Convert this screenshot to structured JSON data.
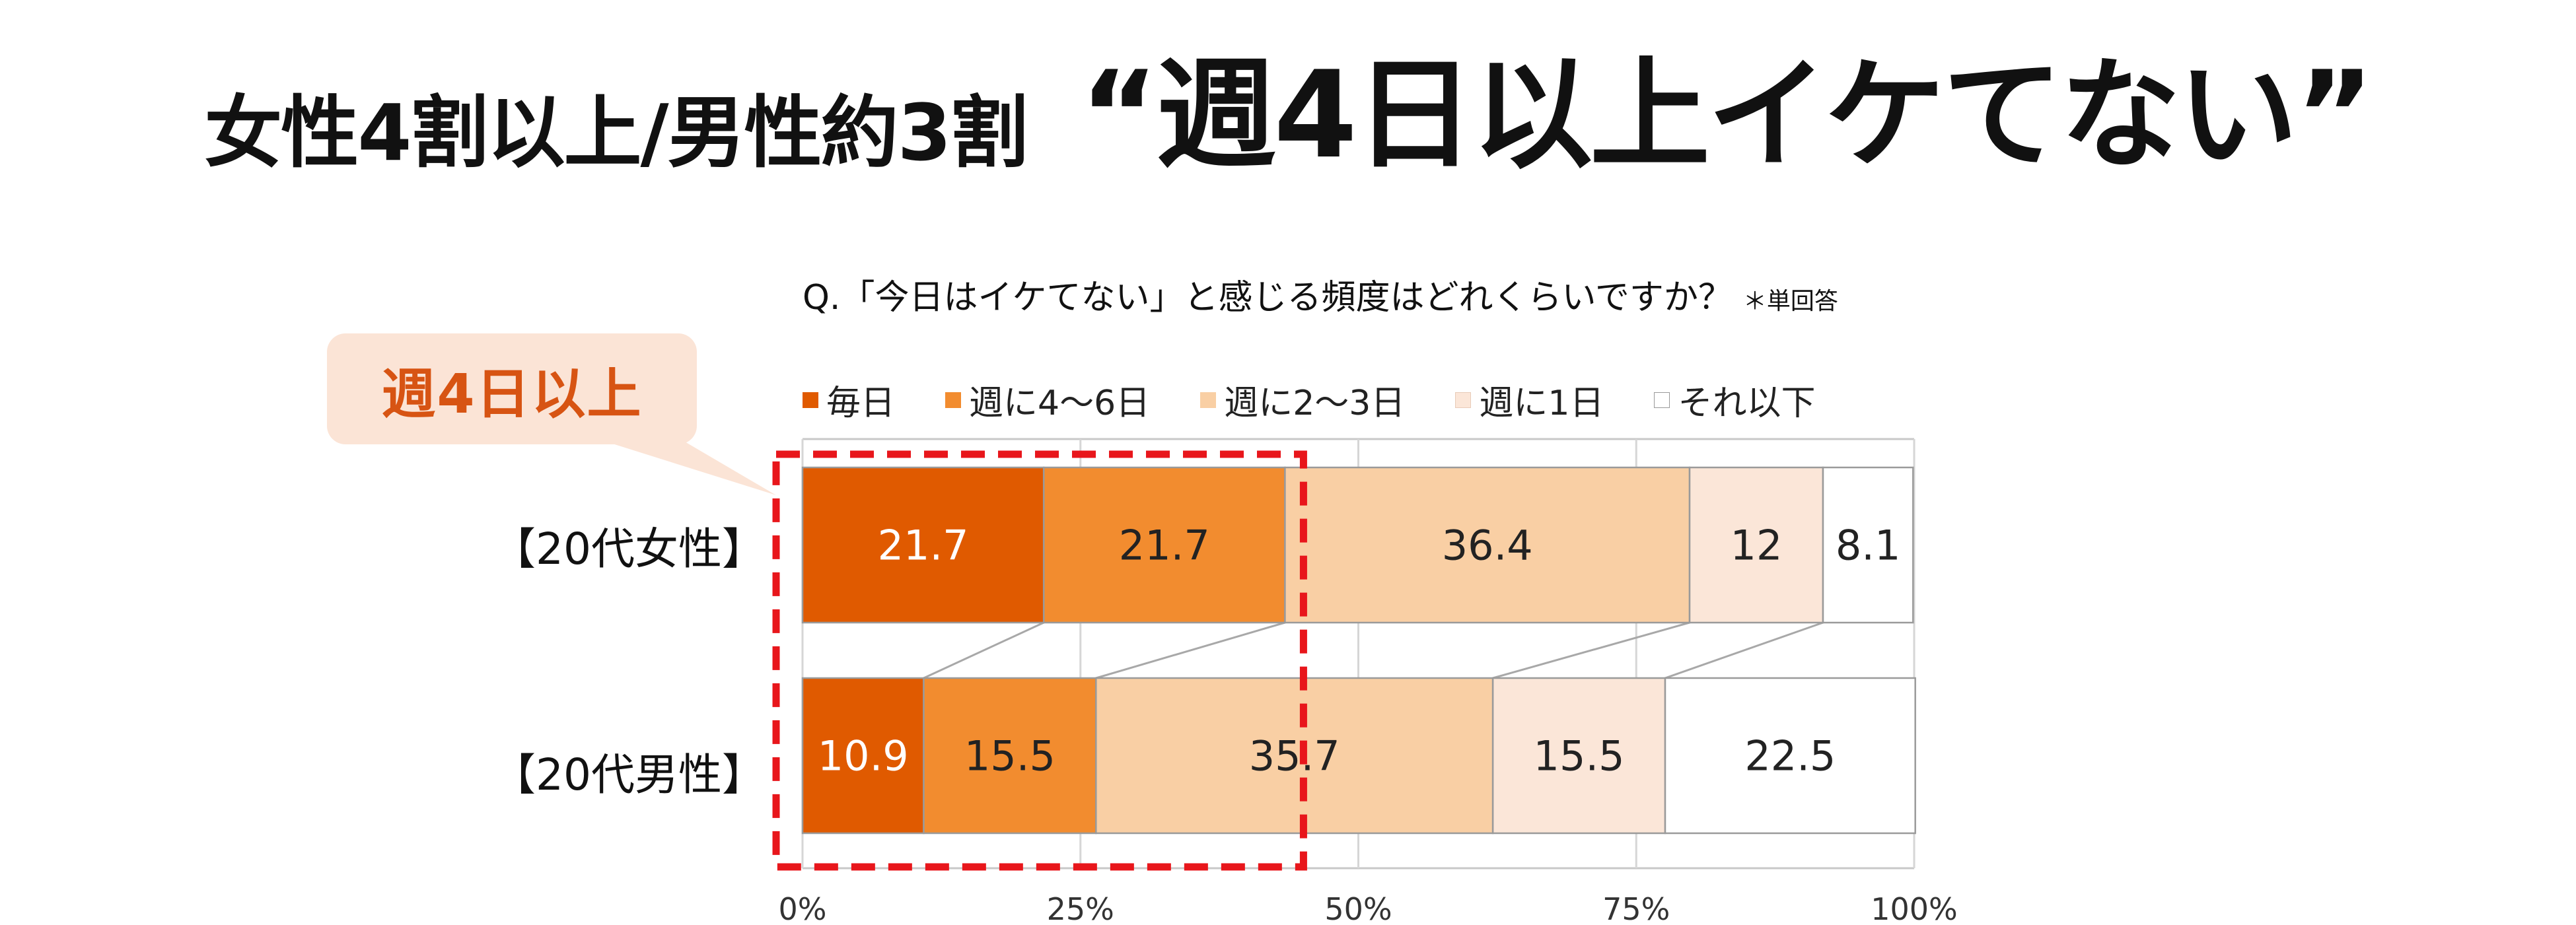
{
  "title": {
    "left": "女性4割以上/男性約3割",
    "right": "“週4日以上イケてない”"
  },
  "question": {
    "text": "Q.「今日はイケてない」と感じる頻度はどれくらいですか？",
    "note": "＊単回答"
  },
  "callout": {
    "label": "週4日以上"
  },
  "colors": {
    "s1": "#e05a00",
    "s2": "#f28c2f",
    "s3": "#f9cfa4",
    "s4": "#fbe6d8",
    "s5": "#ffffff",
    "highlight": "#e8161b",
    "callout_bg": "#fbe4d6",
    "callout_text": "#d75413"
  },
  "chart_data": {
    "type": "bar",
    "orientation": "horizontal",
    "stacked": true,
    "categories": [
      "【20代女性】",
      "【20代男性】"
    ],
    "series": [
      {
        "name": "毎日",
        "values": [
          21.7,
          10.9
        ],
        "color": "#e05a00",
        "label_color": "#ffffff"
      },
      {
        "name": "週に4～6日",
        "values": [
          21.7,
          15.5
        ],
        "color": "#f28c2f",
        "label_color": "#222222"
      },
      {
        "name": "週に2～3日",
        "values": [
          36.4,
          35.7
        ],
        "color": "#f9cfa4",
        "label_color": "#222222"
      },
      {
        "name": "週に1日",
        "values": [
          12,
          15.5
        ],
        "color": "#fbe6d8",
        "label_color": "#222222"
      },
      {
        "name": "それ以下",
        "values": [
          8.1,
          22.5
        ],
        "color": "#ffffff",
        "label_color": "#222222"
      }
    ],
    "value_labels": [
      [
        "21.7",
        "21.7",
        "36.4",
        "12",
        "8.1"
      ],
      [
        "10.9",
        "15.5",
        "35.7",
        "15.5",
        "22.5"
      ]
    ],
    "xlim": [
      0,
      100
    ],
    "xticks": [
      "0%",
      "25%",
      "50%",
      "75%",
      "100%"
    ],
    "legend_position": "top",
    "grid": true
  }
}
